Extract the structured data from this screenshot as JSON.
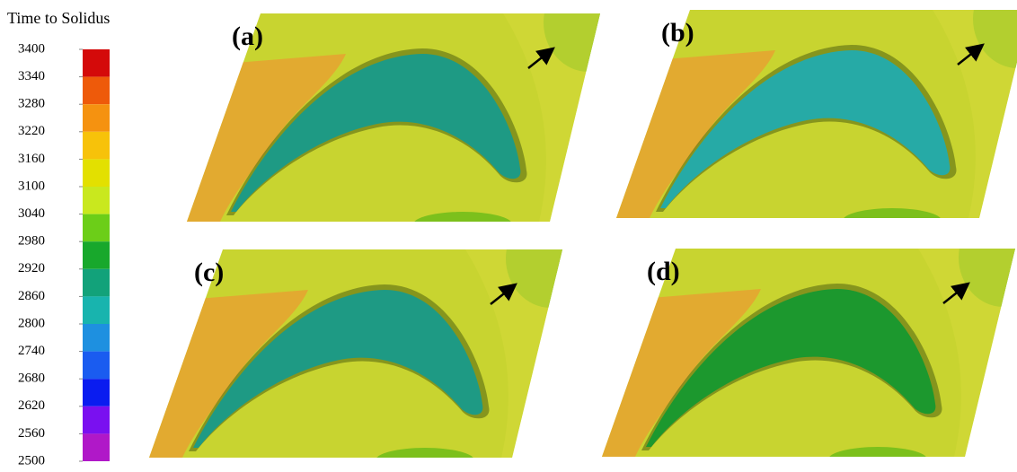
{
  "legend": {
    "title": "Time to Solidus",
    "ticks": [
      3400,
      3340,
      3280,
      3220,
      3160,
      3100,
      3040,
      2980,
      2920,
      2860,
      2800,
      2740,
      2680,
      2620,
      2560,
      2500
    ],
    "colors": [
      "#d40a0a",
      "#ee5a0a",
      "#f59210",
      "#f7c20a",
      "#e3e000",
      "#c9e81e",
      "#6cce18",
      "#18a82c",
      "#12a27a",
      "#18b4ae",
      "#1e90e0",
      "#1a5cf0",
      "#0a1cf0",
      "#7a10f0",
      "#b018c8"
    ]
  },
  "panels": [
    {
      "label": "(a)",
      "airfoil_color": "#1e9a84"
    },
    {
      "label": "(b)",
      "airfoil_color": "#26aaa6"
    },
    {
      "label": "(c)",
      "airfoil_color": "#1e9a84"
    },
    {
      "label": "(d)",
      "airfoil_color": "#1c982e"
    }
  ]
}
